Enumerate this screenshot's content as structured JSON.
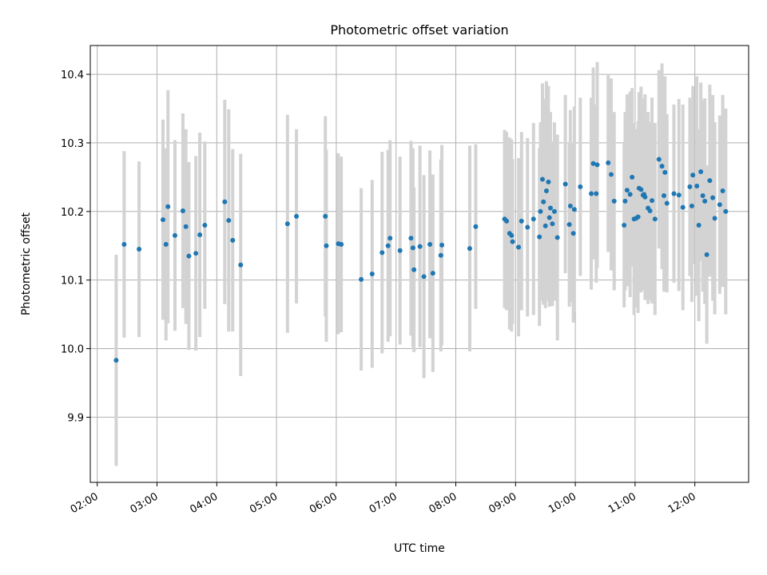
{
  "chart_data": {
    "type": "scatter",
    "title": "Photometric offset variation",
    "xlabel": "UTC time",
    "ylabel": "Photometric offset",
    "x_ticks": [
      "02:00",
      "03:00",
      "04:00",
      "05:00",
      "06:00",
      "07:00",
      "08:00",
      "09:00",
      "10:00",
      "11:00",
      "12:00"
    ],
    "y_ticks": [
      "9.9",
      "10.0",
      "10.1",
      "10.2",
      "10.3",
      "10.4"
    ],
    "xlim": [
      "01:53",
      "12:54"
    ],
    "ylim": [
      9.805,
      10.442
    ],
    "grid": true,
    "colors": {
      "points": "#1f77b4",
      "errorbars": "#d3d3d3",
      "grid": "#b0b0b0"
    },
    "series": [
      {
        "x": [
          "02:19",
          "02:27",
          "02:42",
          "03:06",
          "03:09",
          "03:11",
          "03:18",
          "03:26",
          "03:29",
          "03:32",
          "03:39",
          "03:43",
          "03:48",
          "04:08",
          "04:12",
          "04:16",
          "04:24",
          "05:11",
          "05:20",
          "05:49",
          "05:50",
          "06:02",
          "06:05",
          "06:25",
          "06:36",
          "06:46",
          "06:52",
          "06:54",
          "07:04",
          "07:15",
          "07:17",
          "07:18",
          "07:24",
          "07:28",
          "07:34",
          "07:37",
          "07:45",
          "07:46",
          "08:14",
          "08:20",
          "08:49",
          "08:51",
          "08:54",
          "08:56",
          "08:57",
          "09:03",
          "09:06",
          "09:12",
          "09:18",
          "09:24",
          "09:25",
          "09:27",
          "09:28",
          "09:30",
          "09:31",
          "09:33",
          "09:34",
          "09:35",
          "09:37",
          "09:39",
          "09:42",
          "09:50",
          "09:54",
          "09:55",
          "09:58",
          "09:59",
          "10:05",
          "10:16",
          "10:18",
          "10:21",
          "10:22",
          "10:33",
          "10:36",
          "10:39",
          "10:49",
          "10:50",
          "10:52",
          "10:55",
          "10:57",
          "10:59",
          "11:01",
          "11:03",
          "11:04",
          "11:06",
          "11:08",
          "11:09",
          "11:10",
          "11:13",
          "11:15",
          "11:17",
          "11:20",
          "11:24",
          "11:27",
          "11:29",
          "11:30",
          "11:32",
          "11:39",
          "11:44",
          "11:48",
          "11:55",
          "11:57",
          "11:58",
          "12:02",
          "12:04",
          "12:06",
          "12:08",
          "12:10",
          "12:12",
          "12:15",
          "12:18",
          "12:20",
          "12:25",
          "12:28",
          "12:31"
        ],
        "y": [
          9.983,
          10.152,
          10.145,
          10.188,
          10.152,
          10.207,
          10.165,
          10.201,
          10.178,
          10.135,
          10.139,
          10.166,
          10.18,
          10.214,
          10.187,
          10.158,
          10.122,
          10.182,
          10.193,
          10.193,
          10.15,
          10.153,
          10.152,
          10.101,
          10.109,
          10.14,
          10.15,
          10.161,
          10.143,
          10.161,
          10.147,
          10.115,
          10.149,
          10.105,
          10.152,
          10.11,
          10.136,
          10.151,
          10.146,
          10.178,
          10.189,
          10.186,
          10.168,
          10.165,
          10.156,
          10.148,
          10.186,
          10.177,
          10.189,
          10.163,
          10.2,
          10.247,
          10.214,
          10.179,
          10.23,
          10.243,
          10.191,
          10.205,
          10.182,
          10.2,
          10.162,
          10.24,
          10.181,
          10.208,
          10.168,
          10.203,
          10.236,
          10.226,
          10.27,
          10.226,
          10.268,
          10.271,
          10.254,
          10.215,
          10.18,
          10.215,
          10.231,
          10.225,
          10.25,
          10.189,
          10.19,
          10.192,
          10.234,
          10.232,
          10.224,
          10.225,
          10.221,
          10.205,
          10.201,
          10.216,
          10.189,
          10.276,
          10.266,
          10.223,
          10.257,
          10.212,
          10.226,
          10.224,
          10.206,
          10.236,
          10.208,
          10.253,
          10.237,
          10.18,
          10.258,
          10.223,
          10.215,
          10.137,
          10.245,
          10.22,
          10.19,
          10.21,
          10.23,
          10.2
        ],
        "yerr": [
          0.154,
          0.136,
          0.128,
          0.146,
          0.14,
          0.17,
          0.139,
          0.142,
          0.142,
          0.137,
          0.142,
          0.149,
          0.122,
          0.149,
          0.162,
          0.133,
          0.162,
          0.159,
          0.127,
          0.146,
          0.14,
          0.132,
          0.128,
          0.133,
          0.137,
          0.147,
          0.14,
          0.143,
          0.137,
          0.142,
          0.145,
          0.12,
          0.147,
          0.148,
          0.137,
          0.144,
          0.14,
          0.146,
          0.15,
          0.12,
          0.13,
          0.13,
          0.14,
          0.14,
          0.12,
          0.13,
          0.13,
          0.13,
          0.14,
          0.13,
          0.13,
          0.14,
          0.15,
          0.12,
          0.16,
          0.14,
          0.13,
          0.14,
          0.12,
          0.13,
          0.15,
          0.13,
          0.12,
          0.14,
          0.13,
          0.15,
          0.13,
          0.14,
          0.14,
          0.13,
          0.15,
          0.13,
          0.14,
          0.13,
          0.12,
          0.13,
          0.14,
          0.15,
          0.13,
          0.14,
          0.13,
          0.14,
          0.14,
          0.15,
          0.13,
          0.14,
          0.15,
          0.14,
          0.13,
          0.15,
          0.14,
          0.13,
          0.15,
          0.14,
          0.14,
          0.13,
          0.13,
          0.14,
          0.15,
          0.13,
          0.14,
          0.13,
          0.16,
          0.14,
          0.13,
          0.14,
          0.15,
          0.13,
          0.14,
          0.15,
          0.14,
          0.13,
          0.14,
          0.15
        ]
      }
    ]
  }
}
